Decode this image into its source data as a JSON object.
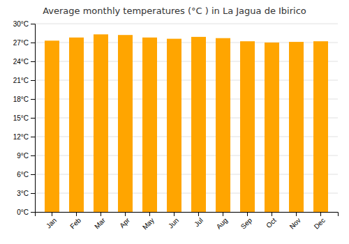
{
  "chart_data": {
    "type": "bar",
    "title": "Average monthly temperatures (°C ) in La Jagua de Ibirico",
    "categories": [
      "Jan",
      "Feb",
      "Mar",
      "Apr",
      "May",
      "Jun",
      "Jul",
      "Aug",
      "Sep",
      "Oct",
      "Nov",
      "Dec"
    ],
    "values": [
      27.3,
      27.8,
      28.3,
      28.2,
      27.8,
      27.6,
      27.9,
      27.7,
      27.2,
      27.0,
      27.1,
      27.2
    ],
    "color": "#FFA500",
    "ylim": [
      0,
      30
    ],
    "yticks": [
      {
        "value": 0,
        "label": "0°C"
      },
      {
        "value": 3,
        "label": "3°C"
      },
      {
        "value": 6,
        "label": "6°C"
      },
      {
        "value": 9,
        "label": "9°C"
      },
      {
        "value": 12,
        "label": "12°C"
      },
      {
        "value": 15,
        "label": "15°C"
      },
      {
        "value": 18,
        "label": "18°C"
      },
      {
        "value": 21,
        "label": "21°C"
      },
      {
        "value": 24,
        "label": "24°C"
      },
      {
        "value": 27,
        "label": "27°C"
      },
      {
        "value": 30,
        "label": "30°C"
      }
    ],
    "grid": true
  }
}
